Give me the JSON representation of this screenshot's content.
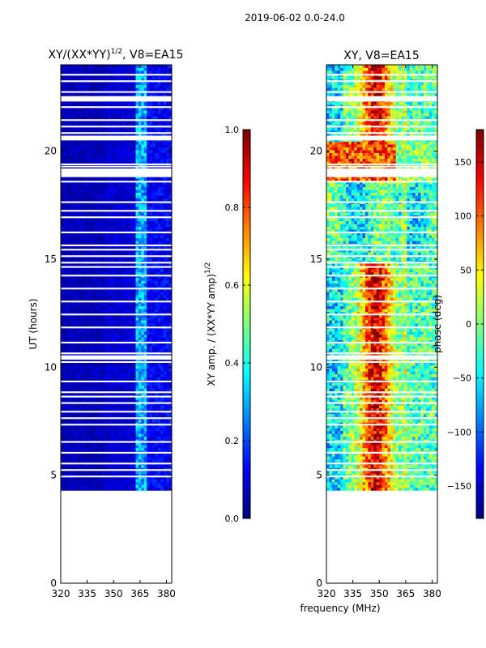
{
  "figure_title": "2019-06-02 0.0-24.0",
  "chart_data": [
    {
      "type": "heatmap",
      "title": "XY/(XX*YY)^1/2, V8=EA15",
      "title_main": "XY/(XX*YY)",
      "title_exp": "1/2",
      "title_suffix": ", V8=EA15",
      "xlabel": "",
      "ylabel": "UT (hours)",
      "xlim": [
        320,
        383
      ],
      "ylim": [
        0,
        24
      ],
      "xticks": [
        320,
        335,
        350,
        365,
        380
      ],
      "yticks": [
        0,
        5,
        10,
        15,
        20
      ],
      "data_time_range_hours": [
        4.3,
        24.0
      ],
      "colorbar": {
        "label": "XY amp. / (XX*YY amp)^1/2",
        "label_main": "XY amp. / (XX*YY amp)",
        "label_exp": "1/2",
        "range": [
          0.0,
          1.0
        ],
        "ticks": [
          "0.0",
          "0.2",
          "0.4",
          "0.6",
          "0.8",
          "1.0"
        ],
        "colormap": "jet"
      }
    },
    {
      "type": "heatmap",
      "title": "XY, V8=EA15",
      "xlabel": "frequency (MHz)",
      "ylabel": "",
      "xlim": [
        320,
        383
      ],
      "ylim": [
        0,
        24
      ],
      "xticks": [
        320,
        335,
        350,
        365,
        380
      ],
      "yticks": [
        0,
        5,
        10,
        15,
        20
      ],
      "data_time_range_hours": [
        4.3,
        24.0
      ],
      "colorbar": {
        "label": "phase (deg)",
        "range": [
          -180,
          180
        ],
        "ticks": [
          "-150",
          "-100",
          "-50",
          "0",
          "50",
          "100",
          "150"
        ],
        "colormap": "jet"
      }
    }
  ],
  "colors": {
    "jet": [
      "#00007f",
      "#0000ff",
      "#007fff",
      "#00ffff",
      "#7fff7f",
      "#ffff00",
      "#ff7f00",
      "#ff0000",
      "#7f0000"
    ]
  }
}
